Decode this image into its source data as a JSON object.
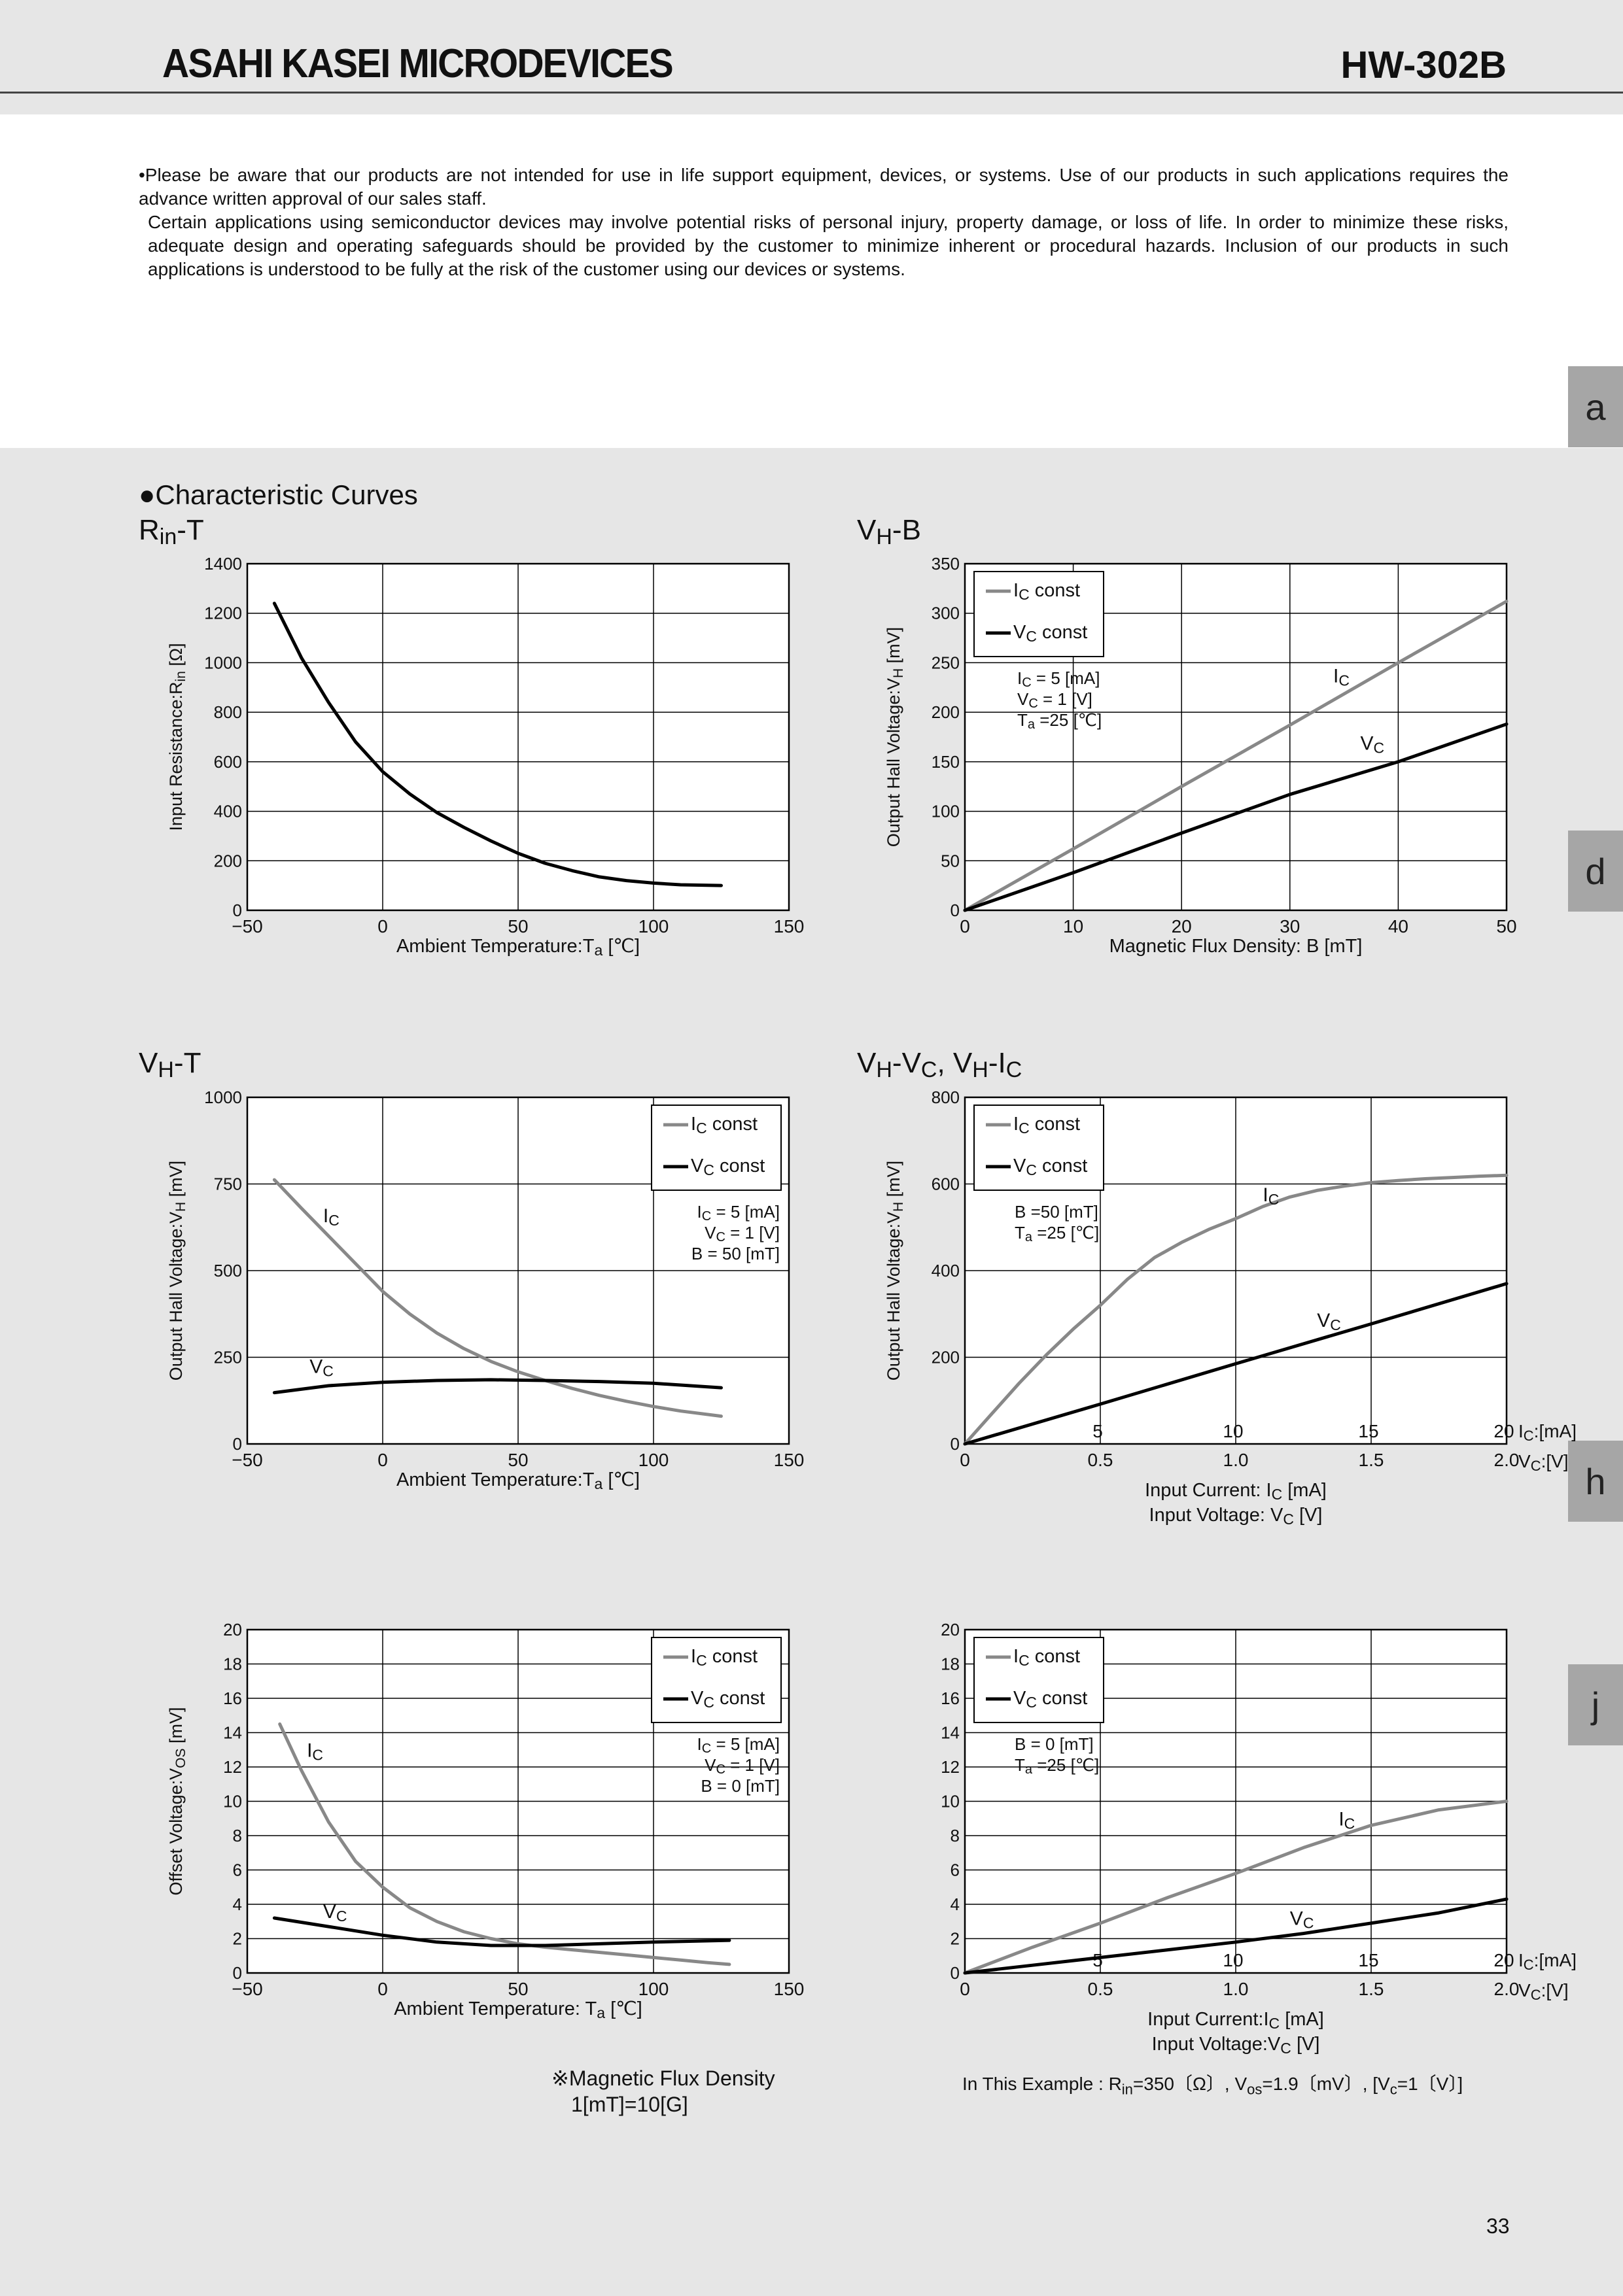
{
  "header": {
    "brand": "ASAHI KASEI MICRODEVICES",
    "model": "HW-302B"
  },
  "notice": {
    "line1": "•Please be aware that our products are not intended for use in life support equipment, devices, or systems. Use of our products in such applications requires the advance written approval of our sales staff.",
    "line2": "Certain applications using semiconductor devices may involve potential risks of personal injury, property damage, or loss of life. In order to minimize these  risks, adequate design and operating safeguards should be provided by the customer to minimize inherent or procedural hazards. Inclusion of our products in such applications is understood to be fully at the risk of the customer using our devices or systems."
  },
  "tabs": [
    "a",
    "d",
    "h",
    "j"
  ],
  "section_title": "●Characteristic Curves",
  "footnote_left": {
    "line1": "※Magnetic Flux Density",
    "line2": "1[mT]=10[G]"
  },
  "footnote_right": "In This Example : R<sub>in</sub>=350〔Ω〕, V<sub>os</sub>=1.9〔mV〕, [V<sub>c</sub>=1〔V〕]",
  "page_number": "33",
  "colors": {
    "ic_series": "#888888",
    "vc_series": "#000000"
  },
  "chart_data": [
    {
      "id": "rin-t",
      "type": "line",
      "title": "R<sub>in</sub>-T",
      "xlabel": "Ambient Temperature:T<sub>a</sub> [℃]",
      "ylabel": "Input Resistance:R<sub>in</sub> [Ω]",
      "xlim": [
        -50,
        150
      ],
      "ylim": [
        0,
        1400
      ],
      "xticks": [
        "−50",
        "0",
        "50",
        "100",
        "150"
      ],
      "yticks": [
        "0",
        "200",
        "400",
        "600",
        "800",
        "1000",
        "1200",
        "1400"
      ],
      "legend": null,
      "conditions": [],
      "series": [
        {
          "name": "",
          "color": "#000000",
          "points": [
            [
              -40,
              1240
            ],
            [
              -30,
              1020
            ],
            [
              -20,
              840
            ],
            [
              -10,
              680
            ],
            [
              0,
              560
            ],
            [
              10,
              470
            ],
            [
              20,
              395
            ],
            [
              30,
              335
            ],
            [
              40,
              280
            ],
            [
              50,
              230
            ],
            [
              60,
              190
            ],
            [
              70,
              160
            ],
            [
              80,
              135
            ],
            [
              90,
              120
            ],
            [
              100,
              110
            ],
            [
              110,
              103
            ],
            [
              125,
              100
            ]
          ]
        }
      ],
      "labels": []
    },
    {
      "id": "vh-b",
      "type": "line",
      "title": "V<sub>H</sub>-B",
      "xlabel": "Magnetic Flux Density: B [mT]",
      "ylabel": "Output Hall Voltage:V<sub>H</sub> [mV]",
      "xlim": [
        0,
        50
      ],
      "ylim": [
        0,
        350
      ],
      "xticks": [
        "0",
        "10",
        "20",
        "30",
        "40",
        "50"
      ],
      "yticks": [
        "0",
        "50",
        "100",
        "150",
        "200",
        "250",
        "300",
        "350"
      ],
      "legend": [
        "I<sub>C</sub> const",
        "V<sub>C</sub> const"
      ],
      "conditions": [
        "I<sub>C</sub>  = 5  [mA]",
        "V<sub>C</sub>  =  1  [V]",
        "T<sub>a</sub>  =25 [℃]"
      ],
      "series": [
        {
          "name": "I<sub>C</sub> const",
          "color": "#888888",
          "points": [
            [
              0,
              0
            ],
            [
              10,
              62
            ],
            [
              20,
              125
            ],
            [
              30,
              187
            ],
            [
              40,
              250
            ],
            [
              50,
              312
            ]
          ]
        },
        {
          "name": "V<sub>C</sub> const",
          "color": "#000000",
          "points": [
            [
              0,
              0
            ],
            [
              10,
              38
            ],
            [
              20,
              78
            ],
            [
              30,
              117
            ],
            [
              40,
              150
            ],
            [
              50,
              188
            ]
          ]
        }
      ],
      "labels": [
        {
          "text": "I<sub>C</sub>",
          "x": 34,
          "y": 230
        },
        {
          "text": "V<sub>C</sub>",
          "x": 36.5,
          "y": 162
        }
      ]
    },
    {
      "id": "vh-t",
      "type": "line",
      "title": "V<sub>H</sub>-T",
      "xlabel": "Ambient Temperature:T<sub>a</sub> [℃]",
      "ylabel": "Output Hall Voltage:V<sub>H</sub> [mV]",
      "xlim": [
        -50,
        150
      ],
      "ylim": [
        0,
        1000
      ],
      "xticks": [
        "−50",
        "0",
        "50",
        "100",
        "150"
      ],
      "yticks": [
        "0",
        "250",
        "500",
        "750",
        "1000"
      ],
      "legend": [
        "I<sub>C</sub> const",
        "V<sub>C</sub> const"
      ],
      "conditions": [
        "I<sub>C</sub>  =  5  [mA]",
        "V<sub>C</sub>  =  1  [V]",
        "B   = 50 [mT]"
      ],
      "series": [
        {
          "name": "I<sub>C</sub> const",
          "color": "#888888",
          "points": [
            [
              -40,
              762
            ],
            [
              -30,
              680
            ],
            [
              -20,
              600
            ],
            [
              -10,
              520
            ],
            [
              0,
              440
            ],
            [
              10,
              375
            ],
            [
              20,
              320
            ],
            [
              30,
              275
            ],
            [
              40,
              238
            ],
            [
              50,
              208
            ],
            [
              60,
              183
            ],
            [
              70,
              160
            ],
            [
              80,
              140
            ],
            [
              90,
              123
            ],
            [
              100,
              108
            ],
            [
              110,
              95
            ],
            [
              125,
              80
            ]
          ]
        },
        {
          "name": "V<sub>C</sub> const",
          "color": "#000000",
          "points": [
            [
              -40,
              148
            ],
            [
              -20,
              168
            ],
            [
              0,
              178
            ],
            [
              20,
              183
            ],
            [
              40,
              185
            ],
            [
              60,
              183
            ],
            [
              80,
              180
            ],
            [
              100,
              175
            ],
            [
              125,
              162
            ]
          ]
        }
      ],
      "labels": [
        {
          "text": "I<sub>C</sub>",
          "x": -22,
          "y": 640
        },
        {
          "text": "V<sub>C</sub>",
          "x": -27,
          "y": 205
        }
      ]
    },
    {
      "id": "vh-vc-ic",
      "type": "line",
      "title": "V<sub>H</sub>-V<sub>C</sub>, V<sub>H</sub>-I<sub>C</sub>",
      "xlabel": "Input Current: I<sub>C</sub> [mA]",
      "xlabel2": "Input Voltage: V<sub>C</sub> [V]",
      "ylabel": "Output Hall Voltage:V<sub>H</sub> [mV]",
      "xlim": [
        0,
        2.0
      ],
      "ylim": [
        0,
        800
      ],
      "xticks": [
        "0",
        "0.5",
        "1.0",
        "1.5",
        "2.0"
      ],
      "xticks_top": [
        "5",
        "10",
        "15",
        "20"
      ],
      "xunit": "V<sub>C</sub>:[V]",
      "xunit_top": "I<sub>C</sub>:[mA]",
      "yticks": [
        "0",
        "200",
        "400",
        "600",
        "800"
      ],
      "legend": [
        "I<sub>C</sub> const",
        "V<sub>C</sub> const"
      ],
      "conditions": [
        "B   =50 [mT]",
        "T<sub>a</sub>  =25 [℃]"
      ],
      "series": [
        {
          "name": "I<sub>C</sub> const",
          "color": "#888888",
          "points": [
            [
              0,
              0
            ],
            [
              0.1,
              70
            ],
            [
              0.2,
              140
            ],
            [
              0.3,
              205
            ],
            [
              0.4,
              265
            ],
            [
              0.5,
              320
            ],
            [
              0.6,
              380
            ],
            [
              0.7,
              430
            ],
            [
              0.8,
              465
            ],
            [
              0.9,
              495
            ],
            [
              1.0,
              520
            ],
            [
              1.1,
              548
            ],
            [
              1.2,
              570
            ],
            [
              1.3,
              585
            ],
            [
              1.4,
              595
            ],
            [
              1.5,
              603
            ],
            [
              1.6,
              608
            ],
            [
              1.7,
              612
            ],
            [
              1.8,
              615
            ],
            [
              1.9,
              618
            ],
            [
              2.0,
              620
            ]
          ]
        },
        {
          "name": "V<sub>C</sub> const",
          "color": "#000000",
          "points": [
            [
              0,
              0
            ],
            [
              0.5,
              92
            ],
            [
              1.0,
              185
            ],
            [
              1.5,
              277
            ],
            [
              2.0,
              370
            ]
          ]
        }
      ],
      "labels": [
        {
          "text": "I<sub>C</sub>",
          "x": 1.1,
          "y": 560
        },
        {
          "text": "V<sub>C</sub>",
          "x": 1.3,
          "y": 270
        }
      ]
    },
    {
      "id": "vos-t",
      "type": "line",
      "title": "",
      "xlabel": "Ambient Temperature: T<sub>a</sub> [℃]",
      "ylabel": "Offset Voltage:V<sub>OS</sub> [mV]",
      "xlim": [
        -50,
        150
      ],
      "ylim": [
        0,
        20
      ],
      "xticks": [
        "−50",
        "0",
        "50",
        "100",
        "150"
      ],
      "yticks": [
        "0",
        "2",
        "4",
        "6",
        "8",
        "10",
        "12",
        "14",
        "16",
        "18",
        "20"
      ],
      "legend": [
        "I<sub>C</sub> const",
        "V<sub>C</sub> const"
      ],
      "conditions": [
        "I<sub>C</sub>  = 5  [mA]",
        "V<sub>C</sub>  = 1  [V]",
        "B   = 0 [mT]"
      ],
      "series": [
        {
          "name": "I<sub>C</sub> const",
          "color": "#888888",
          "points": [
            [
              -38,
              14.5
            ],
            [
              -30,
              11.8
            ],
            [
              -20,
              8.8
            ],
            [
              -10,
              6.5
            ],
            [
              0,
              5.0
            ],
            [
              10,
              3.8
            ],
            [
              20,
              3.0
            ],
            [
              30,
              2.4
            ],
            [
              40,
              2.0
            ],
            [
              50,
              1.7
            ],
            [
              60,
              1.5
            ],
            [
              70,
              1.35
            ],
            [
              80,
              1.2
            ],
            [
              90,
              1.05
            ],
            [
              100,
              0.9
            ],
            [
              110,
              0.75
            ],
            [
              120,
              0.6
            ],
            [
              128,
              0.5
            ]
          ]
        },
        {
          "name": "V<sub>C</sub> const",
          "color": "#000000",
          "points": [
            [
              -40,
              3.2
            ],
            [
              -20,
              2.7
            ],
            [
              0,
              2.2
            ],
            [
              20,
              1.8
            ],
            [
              40,
              1.6
            ],
            [
              60,
              1.6
            ],
            [
              80,
              1.7
            ],
            [
              100,
              1.8
            ],
            [
              128,
              1.9
            ]
          ]
        }
      ],
      "labels": [
        {
          "text": "I<sub>C</sub>",
          "x": -28,
          "y": 12.6
        },
        {
          "text": "V<sub>C</sub>",
          "x": -22,
          "y": 3.2
        }
      ]
    },
    {
      "id": "vos-vc-ic",
      "type": "line",
      "title": "",
      "xlabel": "Input Current:I<sub>C</sub> [mA]",
      "xlabel2": "Input Voltage:V<sub>C</sub> [V]",
      "ylabel": "",
      "xlim": [
        0,
        2.0
      ],
      "ylim": [
        0,
        20
      ],
      "xticks": [
        "0",
        "0.5",
        "1.0",
        "1.5",
        "2.0"
      ],
      "xticks_top": [
        "5",
        "10",
        "15",
        "20"
      ],
      "xunit": "V<sub>C</sub>:[V]",
      "xunit_top": "I<sub>C</sub>:[mA]",
      "yticks": [
        "0",
        "2",
        "4",
        "6",
        "8",
        "10",
        "12",
        "14",
        "16",
        "18",
        "20"
      ],
      "legend": [
        "I<sub>C</sub> const",
        "V<sub>C</sub> const"
      ],
      "conditions": [
        "B   =  0 [mT]",
        "T<sub>a</sub>  =25 [℃]"
      ],
      "series": [
        {
          "name": "I<sub>C</sub> const",
          "color": "#888888",
          "points": [
            [
              0,
              0
            ],
            [
              0.25,
              1.5
            ],
            [
              0.5,
              2.9
            ],
            [
              0.75,
              4.4
            ],
            [
              1.0,
              5.8
            ],
            [
              1.25,
              7.3
            ],
            [
              1.5,
              8.6
            ],
            [
              1.75,
              9.5
            ],
            [
              2.0,
              10.0
            ]
          ]
        },
        {
          "name": "V<sub>C</sub> const",
          "color": "#000000",
          "points": [
            [
              0,
              0
            ],
            [
              0.25,
              0.45
            ],
            [
              0.5,
              0.9
            ],
            [
              0.75,
              1.35
            ],
            [
              1.0,
              1.8
            ],
            [
              1.25,
              2.3
            ],
            [
              1.5,
              2.9
            ],
            [
              1.75,
              3.5
            ],
            [
              2.0,
              4.3
            ]
          ]
        }
      ],
      "labels": [
        {
          "text": "I<sub>C</sub>",
          "x": 1.38,
          "y": 8.6
        },
        {
          "text": "V<sub>C</sub>",
          "x": 1.2,
          "y": 2.8
        }
      ]
    }
  ]
}
